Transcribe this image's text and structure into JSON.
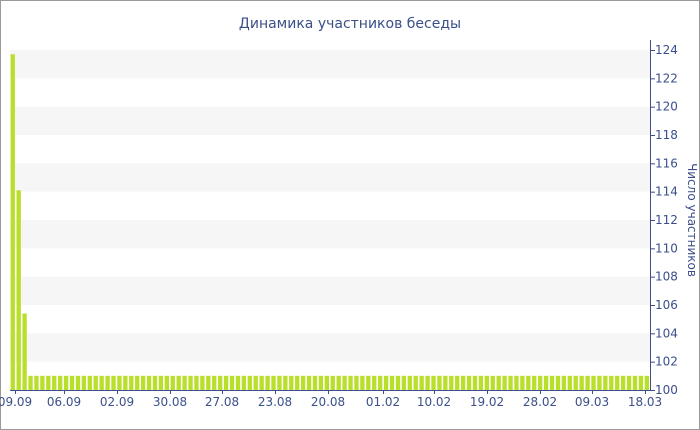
{
  "chart_data": {
    "type": "bar",
    "title": "Динамика участников беседы",
    "xlabel": "",
    "ylabel": "Число участников",
    "ylim": [
      100,
      124
    ],
    "yticks": [
      100,
      102,
      104,
      106,
      108,
      110,
      112,
      114,
      116,
      118,
      120,
      122,
      124
    ],
    "y_axis_position": "right",
    "grid": "horizontal alternating bands",
    "bar_color": "#b8e02a",
    "x_tick_labels": [
      "09.09",
      "06.09",
      "02.09",
      "30.08",
      "27.08",
      "23.08",
      "20.08",
      "01.02",
      "10.02",
      "19.02",
      "28.02",
      "09.03",
      "18.03"
    ],
    "values": [
      123.7,
      114.1,
      105.4,
      101,
      101,
      101,
      101,
      101,
      101,
      101,
      101,
      101,
      101,
      101,
      101,
      101,
      101,
      101,
      101,
      101,
      101,
      101,
      101,
      101,
      101,
      101,
      101,
      101,
      101,
      101,
      101,
      101,
      101,
      101,
      101,
      101,
      101,
      101,
      101,
      101,
      101,
      101,
      101,
      101,
      101,
      101,
      101,
      101,
      101,
      101,
      101,
      101,
      101,
      101,
      101,
      101,
      101,
      101,
      101,
      101,
      101,
      101,
      101,
      101,
      101,
      101,
      101,
      101,
      101,
      101,
      101,
      101,
      101,
      101,
      101,
      101,
      101,
      101,
      101,
      101,
      101,
      101,
      101,
      101,
      101,
      101,
      101,
      101,
      101,
      101,
      101,
      101,
      101,
      101,
      101,
      101,
      101,
      101,
      101,
      101,
      101,
      101,
      101,
      101,
      101,
      101,
      101,
      101
    ]
  }
}
